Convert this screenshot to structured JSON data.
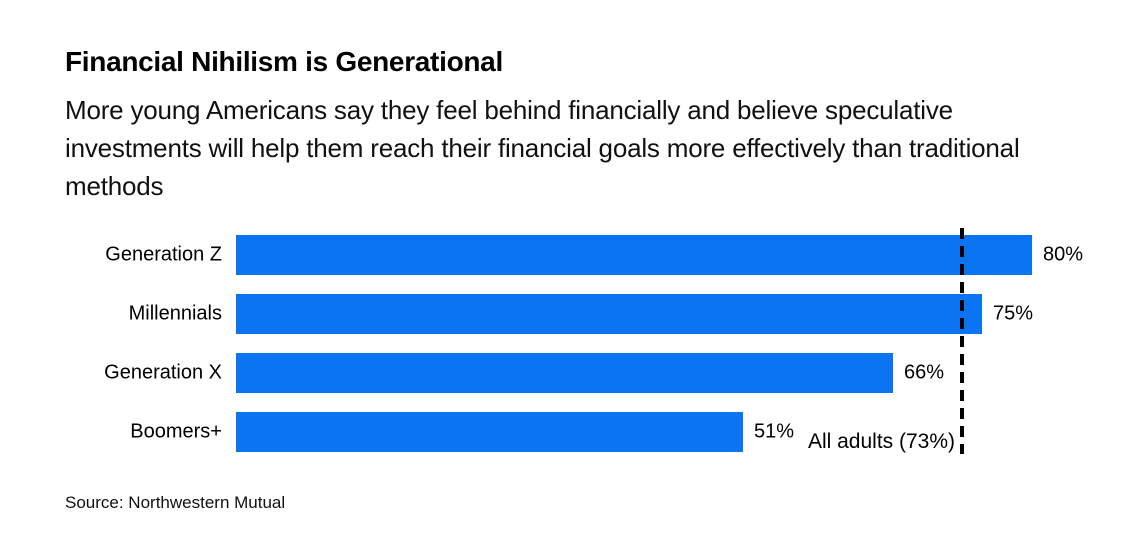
{
  "header": {
    "title": "Financial Nihilism is Generational",
    "subtitle": "More young Americans say they feel behind financially and believe speculative investments will help them reach their financial goals more effectively than traditional methods"
  },
  "chart_data": {
    "type": "bar",
    "orientation": "horizontal",
    "title": "Financial Nihilism is Generational",
    "subtitle": "More young Americans say they feel behind financially and believe speculative investments will help them reach their financial goals more effectively than traditional methods",
    "categories": [
      "Generation Z",
      "Millennials",
      "Generation X",
      "Boomers+"
    ],
    "values": [
      80,
      75,
      66,
      51
    ],
    "display_values": [
      "80%",
      "75%",
      "66%",
      "51%"
    ],
    "unit": "%",
    "xlim": [
      0,
      100
    ],
    "grid": false,
    "legend": false,
    "bar_color": "#0b74f3",
    "reference_line": {
      "label": "All adults (73%)",
      "value": 73,
      "style": "dashed",
      "color": "#000000"
    },
    "source": "Source: Northwestern Mutual"
  },
  "footer": {
    "source": "Source: Northwestern Mutual"
  }
}
